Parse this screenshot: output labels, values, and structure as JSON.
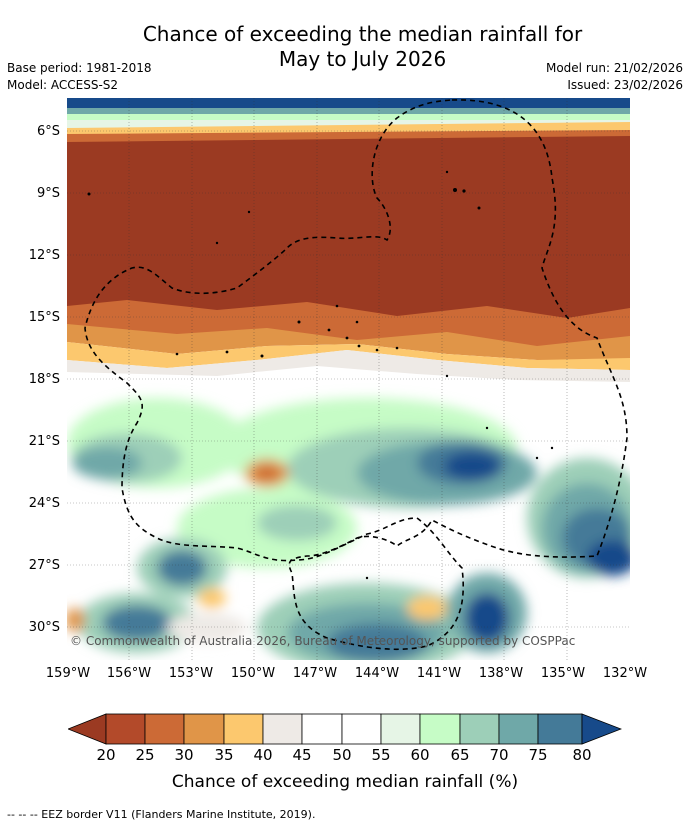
{
  "title_line1": "Chance of exceeding the median rainfall for",
  "title_line2": "May to July 2026",
  "base_period": "Base period: 1981-2018",
  "model": "Model: ACCESS-S2",
  "model_run": "Model run: 21/02/2026",
  "issued": "Issued: 23/02/2026",
  "copyright": "© Commonwealth of Australia 2026, Bureau of Meteorology, supported by COSPPac",
  "latitudes": [
    "6°S",
    "9°S",
    "12°S",
    "15°S",
    "18°S",
    "21°S",
    "24°S",
    "27°S",
    "30°S"
  ],
  "longitudes": [
    "159°W",
    "156°W",
    "153°W",
    "150°W",
    "147°W",
    "144°W",
    "141°W",
    "138°W",
    "135°W",
    "132°W"
  ],
  "colorbar": {
    "ticks": [
      "20",
      "25",
      "30",
      "35",
      "40",
      "45",
      "50",
      "55",
      "60",
      "65",
      "70",
      "75",
      "80"
    ],
    "colors": [
      "#9b3a22",
      "#b34a2a",
      "#cc6a36",
      "#e09548",
      "#fcc86e",
      "#eeeae6",
      "#ffffff",
      "#ffffff",
      "#e6f5e6",
      "#c6fcc6",
      "#9dcfb8",
      "#6fa8a8",
      "#447a98",
      "#174a8a"
    ],
    "label": "Chance of exceeding median rainfall (%)"
  },
  "footnote": "--  --  -- EEZ border V11 (Flanders Marine Institute, 2019)."
}
